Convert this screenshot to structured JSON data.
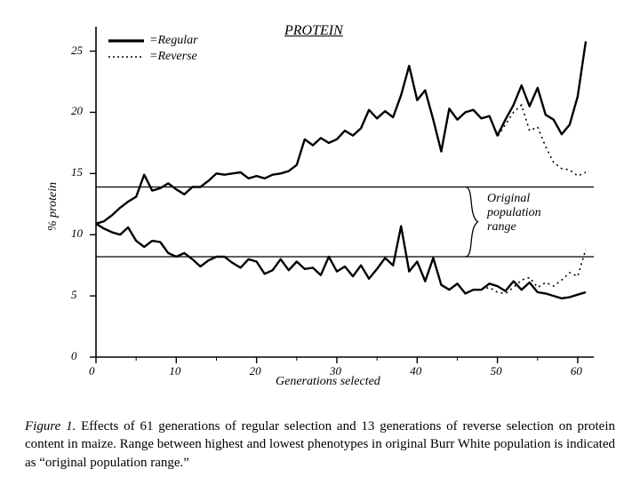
{
  "chart": {
    "type": "line",
    "title": "PROTEIN",
    "title_fontsize": 16,
    "xlabel": "Generations  selected",
    "ylabel": "% protein",
    "label_fontsize": 14,
    "xlim": [
      0,
      62
    ],
    "ylim": [
      0,
      27
    ],
    "xtick_positions": [
      0,
      10,
      20,
      30,
      40,
      50,
      60
    ],
    "xtick_labels": [
      "0",
      "10",
      "20",
      "30",
      "40",
      "50",
      "60"
    ],
    "ytick_positions": [
      0,
      5,
      10,
      15,
      20,
      25
    ],
    "ytick_labels": [
      "0",
      "5",
      "10",
      "15",
      "20",
      "25"
    ],
    "minor_xticks": [
      5,
      15,
      25,
      35,
      45,
      55
    ],
    "background_color": "#ffffff",
    "axis_color": "#000000",
    "series_color": "#000000",
    "line_width_regular": 2.4,
    "line_width_reverse": 1.6,
    "dash_reverse": "2 4",
    "original_range_upper": 13.9,
    "original_range_lower": 8.2,
    "annotation": {
      "line1": "Original",
      "line2": "population",
      "line3": "range"
    },
    "legend": {
      "regular_label": "=Regular",
      "reverse_label": "=Reverse"
    },
    "series": {
      "regular_high": {
        "x": [
          0,
          1,
          2,
          3,
          4,
          5,
          6,
          7,
          8,
          9,
          10,
          11,
          12,
          13,
          14,
          15,
          16,
          17,
          18,
          19,
          20,
          21,
          22,
          23,
          24,
          25,
          26,
          27,
          28,
          29,
          30,
          31,
          32,
          33,
          34,
          35,
          36,
          37,
          38,
          39,
          40,
          41,
          42,
          43,
          44,
          45,
          46,
          47,
          48,
          49,
          50,
          51,
          52,
          53,
          54,
          55,
          56,
          57,
          58,
          59,
          60,
          61
        ],
        "y": [
          10.9,
          11.1,
          11.6,
          12.2,
          12.7,
          13.1,
          14.9,
          13.6,
          13.8,
          14.2,
          13.7,
          13.3,
          13.9,
          13.9,
          14.4,
          15.0,
          14.9,
          15.0,
          15.1,
          14.6,
          14.8,
          14.6,
          14.9,
          15.0,
          15.2,
          15.7,
          17.8,
          17.3,
          17.9,
          17.5,
          17.8,
          18.5,
          18.1,
          18.7,
          20.2,
          19.5,
          20.1,
          19.6,
          21.4,
          23.8,
          21.0,
          21.8,
          19.4,
          16.8,
          20.3,
          19.4,
          20.0,
          20.2,
          19.5,
          19.7,
          18.1,
          19.4,
          20.6,
          22.2,
          20.5,
          22.0,
          19.8,
          19.4,
          18.2,
          19.0,
          21.3,
          25.8
        ]
      },
      "regular_low": {
        "x": [
          0,
          1,
          2,
          3,
          4,
          5,
          6,
          7,
          8,
          9,
          10,
          11,
          12,
          13,
          14,
          15,
          16,
          17,
          18,
          19,
          20,
          21,
          22,
          23,
          24,
          25,
          26,
          27,
          28,
          29,
          30,
          31,
          32,
          33,
          34,
          35,
          36,
          37,
          38,
          39,
          40,
          41,
          42,
          43,
          44,
          45,
          46,
          47,
          48,
          49,
          50,
          51,
          52,
          53,
          54,
          55,
          56,
          57,
          58,
          59,
          60,
          61
        ],
        "y": [
          10.9,
          10.5,
          10.2,
          10.0,
          10.6,
          9.5,
          9.0,
          9.5,
          9.4,
          8.5,
          8.2,
          8.5,
          8.0,
          7.4,
          7.9,
          8.2,
          8.2,
          7.7,
          7.3,
          8.0,
          7.8,
          6.8,
          7.1,
          8.0,
          7.1,
          7.8,
          7.2,
          7.3,
          6.7,
          8.2,
          7.0,
          7.4,
          6.6,
          7.5,
          6.4,
          7.2,
          8.1,
          7.5,
          10.7,
          7.0,
          7.8,
          6.2,
          8.1,
          5.9,
          5.5,
          6.0,
          5.2,
          5.5,
          5.5,
          6.0,
          5.8,
          5.4,
          6.2,
          5.5,
          6.1,
          5.3,
          5.2,
          5.0,
          4.8,
          4.9,
          5.1,
          5.3
        ]
      },
      "reverse_high": {
        "x": [
          48,
          49,
          50,
          51,
          52,
          53,
          54,
          55,
          56,
          57,
          58,
          59,
          60,
          61
        ],
        "y": [
          19.5,
          19.7,
          18.0,
          19.0,
          20.0,
          20.6,
          18.5,
          18.8,
          17.2,
          15.9,
          15.4,
          15.3,
          14.8,
          15.1
        ]
      },
      "reverse_low": {
        "x": [
          48,
          49,
          50,
          51,
          52,
          53,
          54,
          55,
          56,
          57,
          58,
          59,
          60,
          61
        ],
        "y": [
          5.5,
          5.7,
          5.3,
          5.2,
          5.7,
          6.3,
          6.5,
          5.7,
          6.1,
          5.8,
          6.3,
          6.9,
          6.6,
          8.8
        ]
      }
    }
  },
  "caption": {
    "fignum": "Figure 1.",
    "text": "Effects of 61 generations of regular selection and 13 generations of reverse selection on protein content in maize.  Range between highest and lowest phenotypes in original Burr White population is indicated as “original population range.”"
  }
}
